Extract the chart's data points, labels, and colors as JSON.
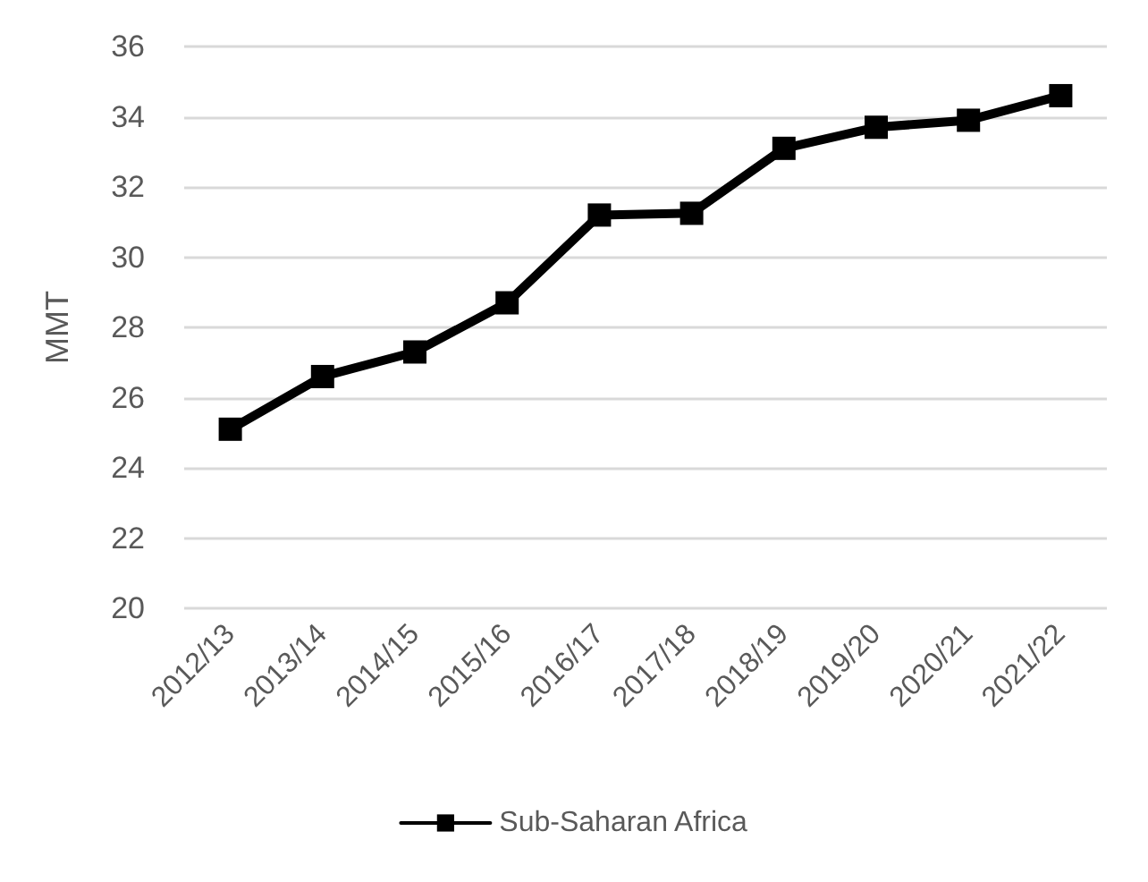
{
  "chart_data": {
    "type": "line",
    "ylabel": "MMT",
    "categories": [
      "2012/13",
      "2013/14",
      "2014/15",
      "2015/16",
      "2016/17",
      "2017/18",
      "2018/19",
      "2019/20",
      "2020/21",
      "2021/22"
    ],
    "series": [
      {
        "name": "Sub-Saharan Africa",
        "color": "#000000",
        "values": [
          25.1,
          26.6,
          27.3,
          28.7,
          31.2,
          31.25,
          33.1,
          33.7,
          33.9,
          34.6
        ]
      }
    ],
    "ylim": [
      20,
      36
    ],
    "yticks": [
      20,
      22,
      24,
      26,
      28,
      30,
      32,
      34,
      36
    ],
    "grid": "y",
    "legend": "bottom",
    "marker": "square",
    "line_style": "solid"
  }
}
